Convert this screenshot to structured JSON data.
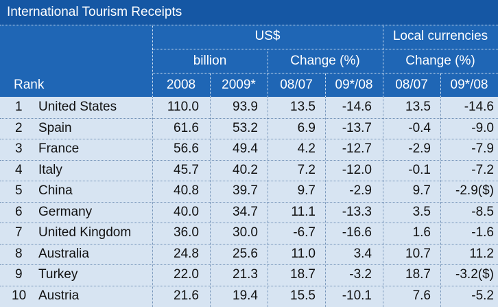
{
  "title": "International Tourism Receipts",
  "header": {
    "rank": "Rank",
    "usd": "US$",
    "local": "Local currencies",
    "billion": "billion",
    "change_usd": "Change (%)",
    "change_local": "Change (%)",
    "y2008": "2008",
    "y2009": "2009*",
    "usd_0807": "08/07",
    "usd_0908": "09*/08",
    "local_0807": "08/07",
    "local_0908": "09*/08"
  },
  "rows": [
    {
      "rank": "1",
      "country": "United States",
      "v2008": "110.0",
      "v2009": "93.9",
      "usd_0807": "13.5",
      "usd_0908": "-14.6",
      "loc_0807": "13.5",
      "loc_0908": "-14.6"
    },
    {
      "rank": "2",
      "country": "Spain",
      "v2008": "61.6",
      "v2009": "53.2",
      "usd_0807": "6.9",
      "usd_0908": "-13.7",
      "loc_0807": "-0.4",
      "loc_0908": "-9.0"
    },
    {
      "rank": "3",
      "country": "France",
      "v2008": "56.6",
      "v2009": "49.4",
      "usd_0807": "4.2",
      "usd_0908": "-12.7",
      "loc_0807": "-2.9",
      "loc_0908": "-7.9"
    },
    {
      "rank": "4",
      "country": "Italy",
      "v2008": "45.7",
      "v2009": "40.2",
      "usd_0807": "7.2",
      "usd_0908": "-12.0",
      "loc_0807": "-0.1",
      "loc_0908": "-7.2"
    },
    {
      "rank": "5",
      "country": "China",
      "v2008": "40.8",
      "v2009": "39.7",
      "usd_0807": "9.7",
      "usd_0908": "-2.9",
      "loc_0807": "9.7",
      "loc_0908": "-2.9($)"
    },
    {
      "rank": "6",
      "country": "Germany",
      "v2008": "40.0",
      "v2009": "34.7",
      "usd_0807": "11.1",
      "usd_0908": "-13.3",
      "loc_0807": "3.5",
      "loc_0908": "-8.5"
    },
    {
      "rank": "7",
      "country": "United Kingdom",
      "v2008": "36.0",
      "v2009": "30.0",
      "usd_0807": "-6.7",
      "usd_0908": "-16.6",
      "loc_0807": "1.6",
      "loc_0908": "-1.6"
    },
    {
      "rank": "8",
      "country": "Australia",
      "v2008": "24.8",
      "v2009": "25.6",
      "usd_0807": "11.0",
      "usd_0908": "3.4",
      "loc_0807": "10.7",
      "loc_0908": "11.2"
    },
    {
      "rank": "9",
      "country": "Turkey",
      "v2008": "22.0",
      "v2009": "21.3",
      "usd_0807": "18.7",
      "usd_0908": "-3.2",
      "loc_0807": "18.7",
      "loc_0908": "-3.2($)"
    },
    {
      "rank": "10",
      "country": "Austria",
      "v2008": "21.6",
      "v2009": "19.4",
      "usd_0807": "15.5",
      "usd_0908": "-10.1",
      "loc_0807": "7.6",
      "loc_0908": "-5.2"
    }
  ]
}
